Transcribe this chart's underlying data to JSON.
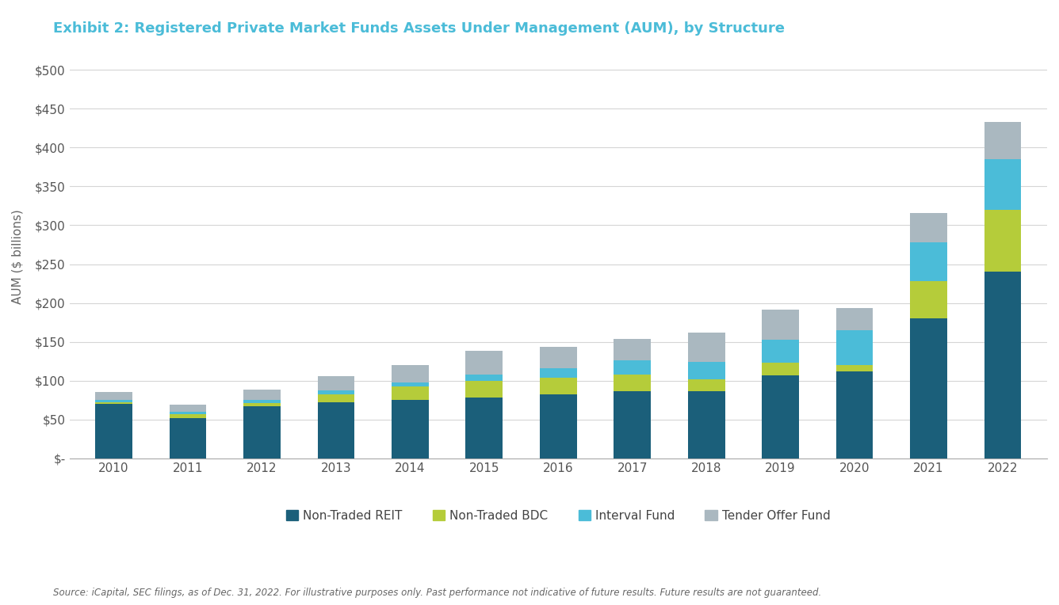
{
  "title": "Exhibit 2: Registered Private Market Funds Assets Under Management (AUM), by Structure",
  "xlabel": "",
  "ylabel": "AUM ($ billions)",
  "source": "Source: iCapital, SEC filings, as of Dec. 31, 2022. For illustrative purposes only. Past performance not indicative of future results. Future results are not guaranteed.",
  "years": [
    2010,
    2011,
    2012,
    2013,
    2014,
    2015,
    2016,
    2017,
    2018,
    2019,
    2020,
    2021,
    2022
  ],
  "non_traded_reit": [
    70,
    52,
    67,
    72,
    75,
    78,
    82,
    86,
    86,
    107,
    112,
    180,
    240
  ],
  "non_traded_bdc": [
    2,
    5,
    4,
    10,
    18,
    22,
    22,
    22,
    16,
    16,
    8,
    48,
    80
  ],
  "interval_fund": [
    3,
    3,
    4,
    6,
    5,
    8,
    12,
    18,
    22,
    30,
    45,
    50,
    65
  ],
  "tender_offer_fund": [
    10,
    9,
    14,
    18,
    22,
    30,
    28,
    28,
    38,
    38,
    28,
    38,
    48
  ],
  "colors": {
    "non_traded_reit": "#1b5f7a",
    "non_traded_bdc": "#b5cc3a",
    "interval_fund": "#4bbcd8",
    "tender_offer_fund": "#aab8c0"
  },
  "ylim": [
    0,
    520
  ],
  "yticks": [
    0,
    50,
    100,
    150,
    200,
    250,
    300,
    350,
    400,
    450,
    500
  ],
  "background_color": "#ffffff",
  "title_color": "#4bbcd8",
  "ylabel_color": "#666666",
  "legend_labels": [
    "Non-Traded REIT",
    "Non-Traded BDC",
    "Interval Fund",
    "Tender Offer Fund"
  ]
}
